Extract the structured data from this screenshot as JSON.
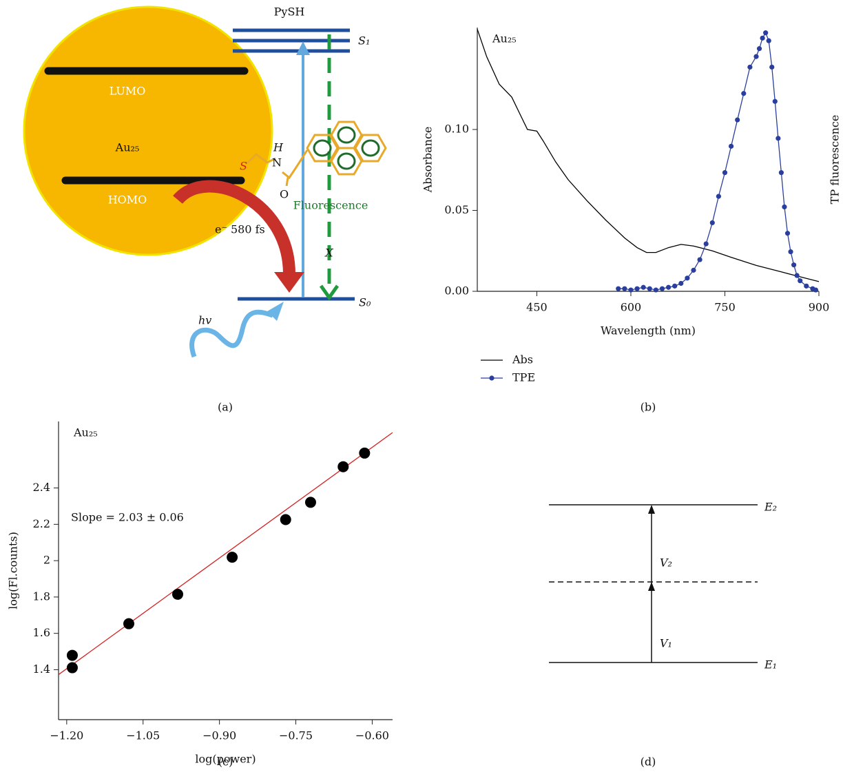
{
  "chart_data": [
    {
      "type": "line",
      "annotation": "Au₂₅",
      "xlabel": "Wavelength (nm)",
      "ylabel": "Absorbance",
      "y2label": "TP fluorescence",
      "xlim": [
        355,
        900
      ],
      "xticks": [
        450,
        600,
        750,
        900
      ],
      "ylim": [
        0,
        0.163
      ],
      "yticks": [
        {
          "value": 0,
          "label": "0.00"
        },
        {
          "value": 0.05,
          "label": "0.05"
        },
        {
          "value": 0.1,
          "label": "0.10"
        }
      ],
      "y2lim": [
        0,
        1
      ],
      "series": [
        {
          "name": "Abs",
          "color": "#000000",
          "x": [
            355,
            370,
            390,
            410,
            425,
            435,
            450,
            460,
            480,
            500,
            530,
            560,
            590,
            610,
            625,
            640,
            660,
            680,
            700,
            730,
            760,
            800,
            840,
            880,
            900
          ],
          "values": [
            0.162,
            0.145,
            0.128,
            0.12,
            0.108,
            0.1,
            0.099,
            0.093,
            0.08,
            0.069,
            0.056,
            0.044,
            0.033,
            0.027,
            0.024,
            0.024,
            0.027,
            0.029,
            0.028,
            0.025,
            0.021,
            0.016,
            0.012,
            0.008,
            0.006
          ]
        },
        {
          "name": "TPE",
          "color": "#2a3f9d",
          "axis": "y2",
          "marker": "circle",
          "x": [
            580,
            590,
            600,
            610,
            620,
            630,
            640,
            650,
            660,
            670,
            680,
            690,
            700,
            710,
            720,
            730,
            740,
            750,
            760,
            770,
            780,
            790,
            800,
            805,
            810,
            815,
            820,
            825,
            830,
            835,
            840,
            845,
            850,
            855,
            860,
            865,
            870,
            880,
            890,
            895
          ],
          "values": [
            0.01,
            0.01,
            0.005,
            0.01,
            0.015,
            0.01,
            0.005,
            0.01,
            0.015,
            0.02,
            0.03,
            0.05,
            0.08,
            0.12,
            0.18,
            0.26,
            0.36,
            0.45,
            0.55,
            0.65,
            0.75,
            0.85,
            0.89,
            0.92,
            0.96,
            0.98,
            0.95,
            0.85,
            0.72,
            0.58,
            0.45,
            0.32,
            0.22,
            0.15,
            0.1,
            0.06,
            0.04,
            0.02,
            0.01,
            0.005
          ]
        }
      ],
      "legend": "below",
      "panel_label": "(b)"
    },
    {
      "type": "scatter",
      "annotation": "Au₂₅",
      "slope_label": "Slope = 2.03 ± 0.06",
      "xlabel": "log(power)",
      "ylabel": "log(Fl.counts)",
      "xlim": [
        -1.216,
        -0.56
      ],
      "xticks": [
        {
          "value": -1.2,
          "label": "−1.20"
        },
        {
          "value": -1.05,
          "label": "−1.05"
        },
        {
          "value": -0.9,
          "label": "−0.90"
        },
        {
          "value": -0.75,
          "label": "−0.75"
        },
        {
          "value": -0.6,
          "label": "−0.60"
        }
      ],
      "ylim": [
        1.125,
        2.766
      ],
      "yticks": [
        1.4,
        1.6,
        1.8,
        2.0,
        2.2,
        2.4
      ],
      "color": "#000000",
      "x": [
        -1.189,
        -1.189,
        -1.078,
        -0.982,
        -0.875,
        -0.77,
        -0.721,
        -0.657,
        -0.615
      ],
      "values": [
        1.479,
        1.411,
        1.653,
        1.815,
        2.019,
        2.226,
        2.321,
        2.517,
        2.592
      ],
      "fit": {
        "color": "#d62020",
        "x": [
          -1.216,
          -0.56
        ],
        "values": [
          1.373,
          2.705
        ]
      },
      "panel_label": "(c)"
    }
  ],
  "diagram_a": {
    "pysh": "PySH",
    "s1": "S₁",
    "lumo": "LUMO",
    "au": "Au₂₅",
    "h": "H",
    "n": "N",
    "s": "S",
    "o": "O",
    "homo": "HOMO",
    "fluorescence": "Fluorescence",
    "electron": "e⁻ 580 fs",
    "x": "X",
    "s0": "S₀",
    "hv": "hv",
    "panel_label": "(a)"
  },
  "diagram_d": {
    "e2": "E₂",
    "v2": "V₂",
    "v1": "V₁",
    "e1": "E₁",
    "panel_label": "(d)"
  }
}
